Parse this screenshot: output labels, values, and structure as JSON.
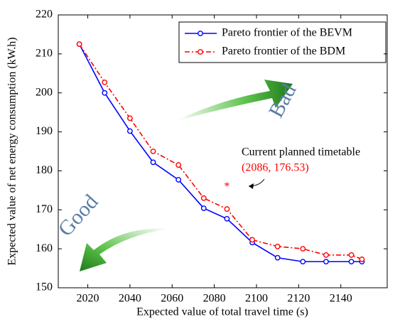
{
  "chart_data": {
    "type": "line",
    "x_label": "Expected value of total travel time (s)",
    "y_label": "Expected value of net energy consumption (kW.h)",
    "x": [
      2016,
      2028,
      2040,
      2051,
      2063,
      2075,
      2086,
      2098,
      2110,
      2122,
      2133,
      2145,
      2150
    ],
    "series": [
      {
        "name": "Pareto frontier of the BEVM",
        "color": "#0000ff",
        "dash": "solid",
        "values": [
          212.5,
          200,
          190.2,
          182.2,
          177.7,
          170.4,
          167.7,
          161.6,
          157.7,
          156.7,
          156.7,
          156.7,
          156.7
        ]
      },
      {
        "name": "Pareto frontier of the BDM",
        "color": "#ff0000",
        "dash": "dashdot",
        "values": [
          212.5,
          202.7,
          193.5,
          185,
          181.5,
          173,
          170.2,
          162.3,
          160.6,
          160,
          158.4,
          158.4,
          157.3
        ]
      }
    ],
    "xlim": [
      2006,
      2162
    ],
    "xticks": [
      2020,
      2040,
      2060,
      2080,
      2100,
      2120,
      2140
    ],
    "ylim": [
      150,
      220
    ],
    "yticks": [
      150,
      160,
      170,
      180,
      190,
      200,
      210,
      220
    ],
    "legend": "upper right",
    "current_point": {
      "label": "Current planned timetable",
      "x": 2086,
      "y": 176.53,
      "value_label": "(2086, 176.53)",
      "color": "#ff0000"
    },
    "annotations": [
      "Good",
      "Bad"
    ]
  }
}
